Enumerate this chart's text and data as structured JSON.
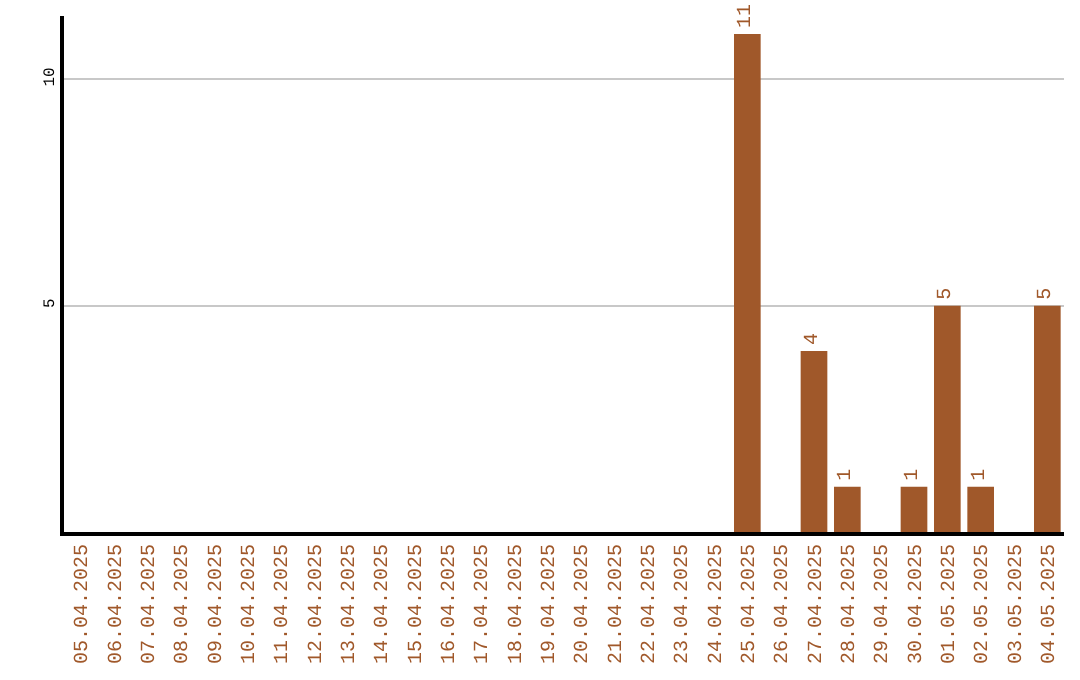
{
  "chart_data": {
    "type": "bar",
    "categories": [
      "05.04.2025",
      "06.04.2025",
      "07.04.2025",
      "08.04.2025",
      "09.04.2025",
      "10.04.2025",
      "11.04.2025",
      "12.04.2025",
      "13.04.2025",
      "14.04.2025",
      "15.04.2025",
      "16.04.2025",
      "17.04.2025",
      "18.04.2025",
      "19.04.2025",
      "20.04.2025",
      "21.04.2025",
      "22.04.2025",
      "23.04.2025",
      "24.04.2025",
      "25.04.2025",
      "26.04.2025",
      "27.04.2025",
      "28.04.2025",
      "29.04.2025",
      "30.04.2025",
      "01.05.2025",
      "02.05.2025",
      "03.05.2025",
      "04.05.2025"
    ],
    "values": [
      null,
      null,
      null,
      null,
      null,
      null,
      null,
      null,
      null,
      null,
      null,
      null,
      null,
      null,
      null,
      null,
      null,
      null,
      null,
      null,
      11,
      null,
      4,
      1,
      null,
      1,
      5,
      1,
      null,
      5
    ],
    "color": "#a0582a",
    "data_labels": true,
    "ylim": [
      0,
      11.4
    ],
    "yticks": [
      5,
      10
    ],
    "grid": "y",
    "legend": false
  }
}
